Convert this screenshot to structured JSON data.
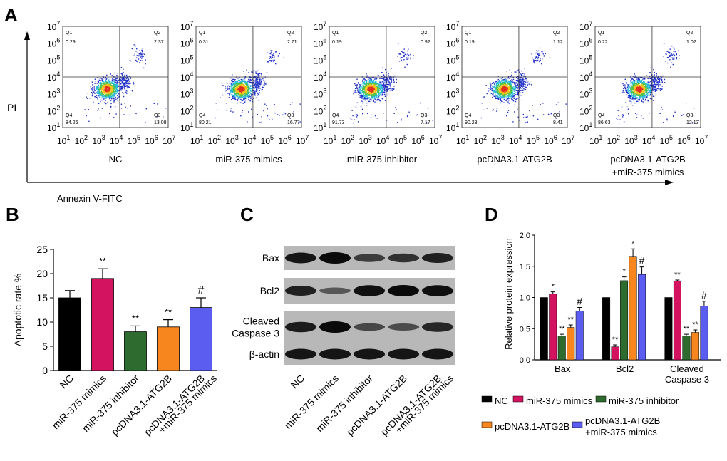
{
  "panel_letters": {
    "a": "A",
    "b": "B",
    "c": "C",
    "d": "D"
  },
  "flow": {
    "x_axis_label": "Annexin V-FITC",
    "y_axis_label": "PI",
    "tick_exponents": [
      "1",
      "2",
      "3",
      "4",
      "5",
      "6",
      "7"
    ],
    "tick_base": "10",
    "plots": [
      {
        "name": "NC",
        "label_line1": "NC",
        "label_line2": "",
        "q1": "0.29",
        "q2": "2.37",
        "q3": "13.08",
        "q4": "84.26"
      },
      {
        "name": "miR-375 mimics",
        "label_line1": "miR-375 mimics",
        "label_line2": "",
        "q1": "0.31",
        "q2": "2.71",
        "q3": "16.77",
        "q4": "80.21"
      },
      {
        "name": "miR-375 inhibitor",
        "label_line1": "miR-375 inhibitor",
        "label_line2": "",
        "q1": "0.19",
        "q2": "0.92",
        "q3": "7.17",
        "q4": "91.73"
      },
      {
        "name": "pcDNA3.1-ATG2B",
        "label_line1": "pcDNA3.1-ATG2B",
        "label_line2": "",
        "q1": "0.19",
        "q2": "1.12",
        "q3": "8.41",
        "q4": "90.28"
      },
      {
        "name": "pcDNA3.1-ATG2B+miR-375 mimics",
        "label_line1": "pcDNA3.1-ATG2B",
        "label_line2": "+miR-375 mimics",
        "q1": "0.22",
        "q2": "1.02",
        "q3": "12.13",
        "q4": "86.63"
      }
    ],
    "quadrant_names": {
      "q1": "Q1",
      "q2": "Q2",
      "q3": "Q3",
      "q4": "Q4"
    }
  },
  "blot": {
    "rows": [
      "Bax",
      "Bcl2",
      "Cleaved Caspase 3",
      "β-actin"
    ],
    "row_label_lines": [
      [
        "Bax"
      ],
      [
        "Bcl2"
      ],
      [
        "Cleaved",
        "Caspase 3"
      ],
      [
        "β-actin"
      ]
    ],
    "lanes": [
      "NC",
      "miR-375 mimics",
      "miR-375 inhibitor",
      "pcDNA3.1-ATG2B",
      "pcDNA3.1-ATG2B +miR-375 mimics"
    ],
    "lane_label_lines": [
      [
        "NC"
      ],
      [
        "miR-375 mimics"
      ],
      [
        "miR-375 inhibitor"
      ],
      [
        "pcDNA3.1-ATG2B"
      ],
      [
        "pcDNA3.1-ATG2B",
        "+miR-375 mimics"
      ]
    ],
    "band_intensity": [
      [
        0.9,
        1.0,
        0.55,
        0.65,
        0.8
      ],
      [
        0.8,
        0.3,
        0.95,
        1.0,
        0.95
      ],
      [
        0.85,
        1.0,
        0.45,
        0.4,
        0.75
      ],
      [
        0.9,
        0.9,
        0.9,
        0.9,
        0.9
      ]
    ]
  },
  "colors": {
    "NC": "#000000",
    "miR-375 mimics": "#d3135f",
    "miR-375 inhibitor": "#2e6b2e",
    "pcDNA3.1-ATG2B": "#f7861f",
    "pcDNA3.1-ATG2B+miR-375 mimics": "#5b5cf0"
  },
  "chart_data": [
    {
      "type": "bar",
      "panel": "B",
      "title": "",
      "xlabel": "",
      "ylabel": "Apoptotic rate %",
      "ylim": [
        0,
        25
      ],
      "yticks": [
        0,
        5,
        10,
        15,
        20,
        25
      ],
      "categories": [
        "NC",
        "miR-375 mimics",
        "miR-375 inhibitor",
        "pcDNA3.1-ATG2B",
        "pcDNA3.1-ATG2B +miR-375 mimics"
      ],
      "category_lines": [
        [
          "NC"
        ],
        [
          "miR-375 mimics"
        ],
        [
          "miR-375 inhibitor"
        ],
        [
          "pcDNA3.1-ATG2B"
        ],
        [
          "pcDNA3.1-ATG2B",
          "+miR-375 mimics"
        ]
      ],
      "values": [
        15,
        19,
        8,
        9,
        13
      ],
      "errors": [
        1.5,
        2,
        1.2,
        1.5,
        2
      ],
      "annotations": [
        "",
        "**",
        "**",
        "**",
        "#"
      ]
    },
    {
      "type": "bar",
      "panel": "D",
      "title": "",
      "xlabel": "",
      "ylabel": "Relative protein expression",
      "ylim": [
        0,
        2.0
      ],
      "yticks": [
        "0.0",
        "0.5",
        "1.0",
        "1.5",
        "2.0"
      ],
      "categories": [
        "Bax",
        "Bcl2",
        "Cleaved Caspase 3"
      ],
      "category_lines": [
        [
          "Bax"
        ],
        [
          "Bcl2"
        ],
        [
          "Cleaved",
          "Caspase 3"
        ]
      ],
      "series": [
        {
          "name": "NC",
          "values": [
            1.0,
            1.0,
            1.0
          ],
          "errors": [
            0,
            0,
            0
          ],
          "annotations": [
            "",
            "",
            ""
          ]
        },
        {
          "name": "miR-375 mimics",
          "values": [
            1.06,
            0.21,
            1.26
          ],
          "errors": [
            0.03,
            0.03,
            0.02
          ],
          "annotations": [
            "*",
            "**",
            "**"
          ]
        },
        {
          "name": "miR-375 inhibitor",
          "values": [
            0.38,
            1.27,
            0.38
          ],
          "errors": [
            0.03,
            0.06,
            0.03
          ],
          "annotations": [
            "**",
            "*",
            "**"
          ]
        },
        {
          "name": "pcDNA3.1-ATG2B",
          "values": [
            0.52,
            1.66,
            0.44
          ],
          "errors": [
            0.04,
            0.12,
            0.04
          ],
          "annotations": [
            "**",
            "*",
            "**"
          ]
        },
        {
          "name": "pcDNA3.1-ATG2B+miR-375 mimics",
          "values": [
            0.78,
            1.37,
            0.86
          ],
          "errors": [
            0.06,
            0.12,
            0.08
          ],
          "annotations": [
            "#",
            "#",
            "#"
          ]
        }
      ],
      "legend": [
        {
          "lines": [
            "NC"
          ]
        },
        {
          "lines": [
            "miR-375 mimics"
          ]
        },
        {
          "lines": [
            "miR-375 inhibitor"
          ]
        },
        {
          "lines": [
            "pcDNA3.1-ATG2B"
          ]
        },
        {
          "lines": [
            "pcDNA3.1-ATG2B",
            "+miR-375 mimics"
          ]
        }
      ]
    }
  ]
}
